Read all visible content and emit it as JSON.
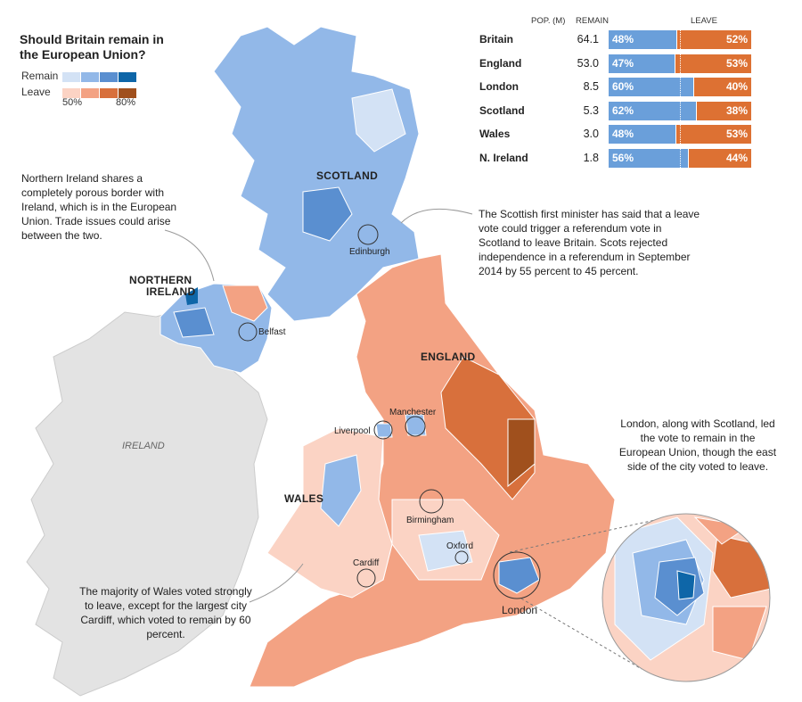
{
  "legend": {
    "title": "Should Britain remain in the European Union?",
    "remain_label": "Remain",
    "leave_label": "Leave",
    "tick_low": "50%",
    "tick_high": "80%",
    "remain_colors": [
      "#d3e2f5",
      "#92b8e8",
      "#5a8fd0",
      "#0e66a8"
    ],
    "leave_colors": [
      "#fbd3c4",
      "#f3a283",
      "#d8703c",
      "#a0501d"
    ]
  },
  "table": {
    "headers": {
      "pop": "POP. (M)",
      "remain": "REMAIN",
      "leave": "LEAVE"
    },
    "rows": [
      {
        "name": "Britain",
        "pop": "64.1",
        "remain": 48,
        "leave": 52,
        "remain_label": "48%",
        "leave_label": "52%"
      },
      {
        "name": "England",
        "pop": "53.0",
        "remain": 47,
        "leave": 53,
        "remain_label": "47%",
        "leave_label": "53%"
      },
      {
        "name": "London",
        "pop": "8.5",
        "remain": 60,
        "leave": 40,
        "remain_label": "60%",
        "leave_label": "40%"
      },
      {
        "name": "Scotland",
        "pop": "5.3",
        "remain": 62,
        "leave": 38,
        "remain_label": "62%",
        "leave_label": "38%"
      },
      {
        "name": "Wales",
        "pop": "3.0",
        "remain": 48,
        "leave": 53,
        "remain_label": "48%",
        "leave_label": "53%"
      },
      {
        "name": "N. Ireland",
        "pop": "1.8",
        "remain": 56,
        "leave": 44,
        "remain_label": "56%",
        "leave_label": "44%"
      }
    ],
    "colors": {
      "remain": "#6a9fda",
      "leave": "#dd7133"
    }
  },
  "regions": {
    "scotland": "SCOTLAND",
    "northern_ireland_1": "NORTHERN",
    "northern_ireland_2": "IRELAND",
    "england": "ENGLAND",
    "wales": "WALES",
    "ireland": "IRELAND"
  },
  "cities": {
    "edinburgh": "Edinburgh",
    "belfast": "Belfast",
    "manchester": "Manchester",
    "liverpool": "Liverpool",
    "birmingham": "Birmingham",
    "oxford": "Oxford",
    "cardiff": "Cardiff",
    "london": "London"
  },
  "annotations": {
    "northern_ireland": "Northern Ireland shares a completely porous border with Ireland, which is in the European Union. Trade issues could arise between the two.",
    "scotland": "The Scottish first minister has said that a leave vote could trigger a referendum vote in Scotland to leave Britain. Scots rejected independence in a referendum in September 2014 by 55 percent to 45 percent.",
    "london": "London, along with Scotland, led the vote to remain in the European Union, though the east side of the city voted to leave.",
    "wales": "The majority of Wales voted strongly to leave, except for the largest city Cardiff, which voted to remain by 60 percent."
  }
}
